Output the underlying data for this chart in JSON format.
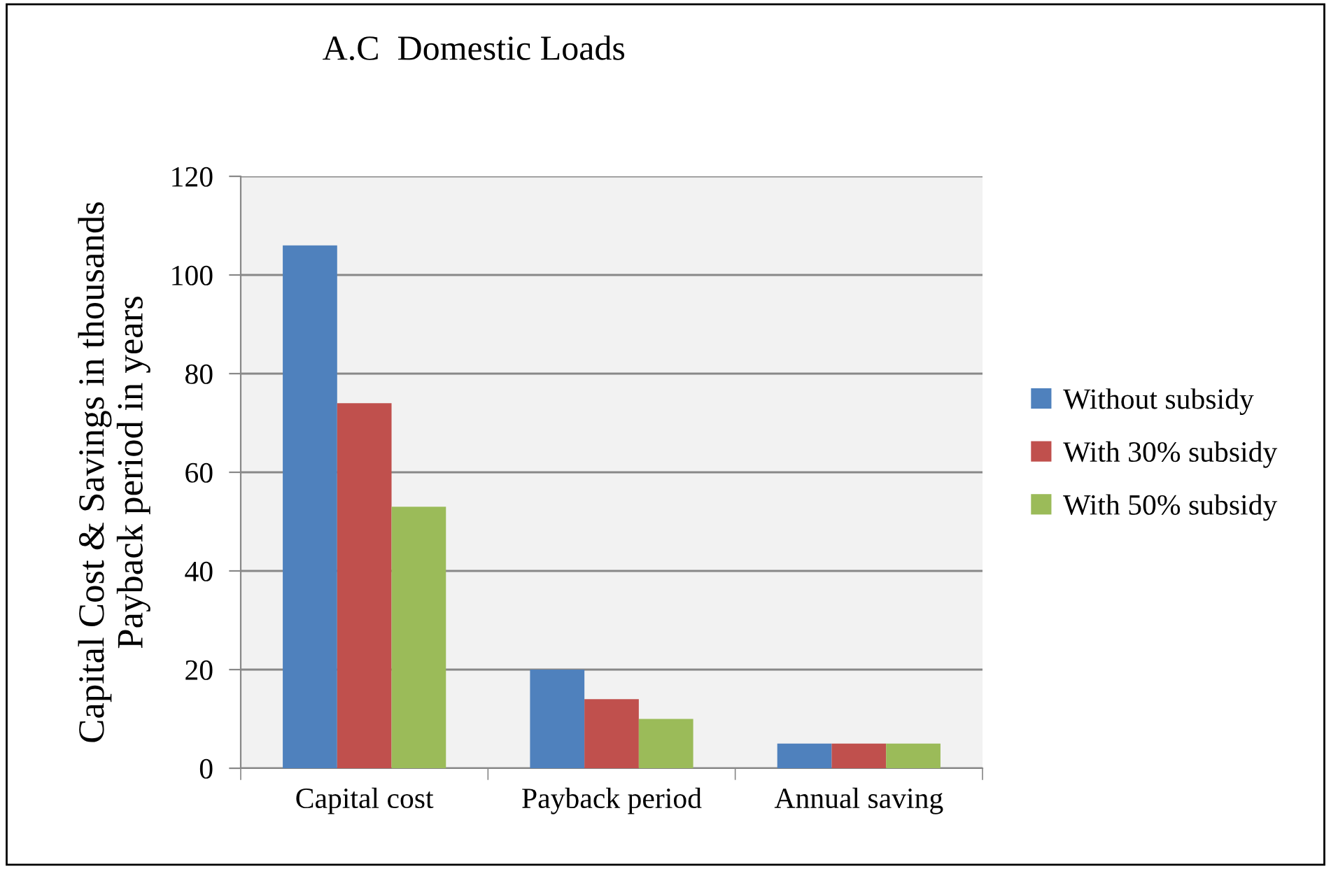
{
  "chart_data": {
    "type": "bar",
    "title": "A.C  Domestic Loads",
    "ylabel": "Capital Cost & Savings in thousands\nPayback period in years",
    "categories": [
      "Capital cost",
      "Payback period",
      "Annual saving"
    ],
    "series": [
      {
        "name": "Without subsidy",
        "color": "#4f81bd",
        "values": [
          106,
          20,
          5
        ]
      },
      {
        "name": "With 30% subsidy",
        "color": "#c0504d",
        "values": [
          74,
          14,
          5
        ]
      },
      {
        "name": "With 50% subsidy",
        "color": "#9bbb59",
        "values": [
          53,
          10,
          5
        ]
      }
    ],
    "ylim": [
      0,
      120
    ],
    "yticks": [
      0,
      20,
      40,
      60,
      80,
      100,
      120
    ],
    "grid": "y",
    "legend": "right"
  }
}
